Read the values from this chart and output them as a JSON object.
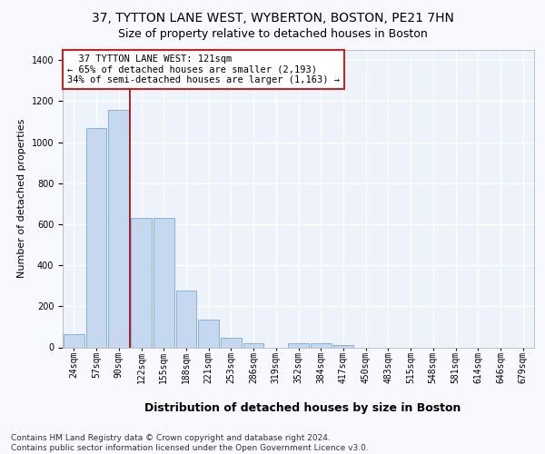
{
  "title1": "37, TYTTON LANE WEST, WYBERTON, BOSTON, PE21 7HN",
  "title2": "Size of property relative to detached houses in Boston",
  "xlabel": "Distribution of detached houses by size in Boston",
  "ylabel": "Number of detached properties",
  "categories": [
    "24sqm",
    "57sqm",
    "90sqm",
    "122sqm",
    "155sqm",
    "188sqm",
    "221sqm",
    "253sqm",
    "286sqm",
    "319sqm",
    "352sqm",
    "384sqm",
    "417sqm",
    "450sqm",
    "483sqm",
    "515sqm",
    "548sqm",
    "581sqm",
    "614sqm",
    "646sqm",
    "679sqm"
  ],
  "values": [
    65,
    1070,
    1160,
    630,
    630,
    275,
    135,
    45,
    20,
    0,
    20,
    20,
    10,
    0,
    0,
    0,
    0,
    0,
    0,
    0,
    0
  ],
  "bar_color": "#c5d8f0",
  "bar_edge_color": "#7aabcf",
  "vline_color": "#aa0000",
  "annotation_text": "  37 TYTTON LANE WEST: 121sqm  \n← 65% of detached houses are smaller (2,193)\n34% of semi-detached houses are larger (1,163) →",
  "annotation_box_color": "#ffffff",
  "annotation_box_edge": "#cc2222",
  "footer": "Contains HM Land Registry data © Crown copyright and database right 2024.\nContains public sector information licensed under the Open Government Licence v3.0.",
  "ylim": [
    0,
    1450
  ],
  "background_color": "#eef2fb",
  "grid_color": "#ffffff",
  "title1_fontsize": 10,
  "title2_fontsize": 9,
  "xlabel_fontsize": 9,
  "ylabel_fontsize": 8,
  "tick_fontsize": 7,
  "footer_fontsize": 6.5,
  "ann_fontsize": 7.5
}
